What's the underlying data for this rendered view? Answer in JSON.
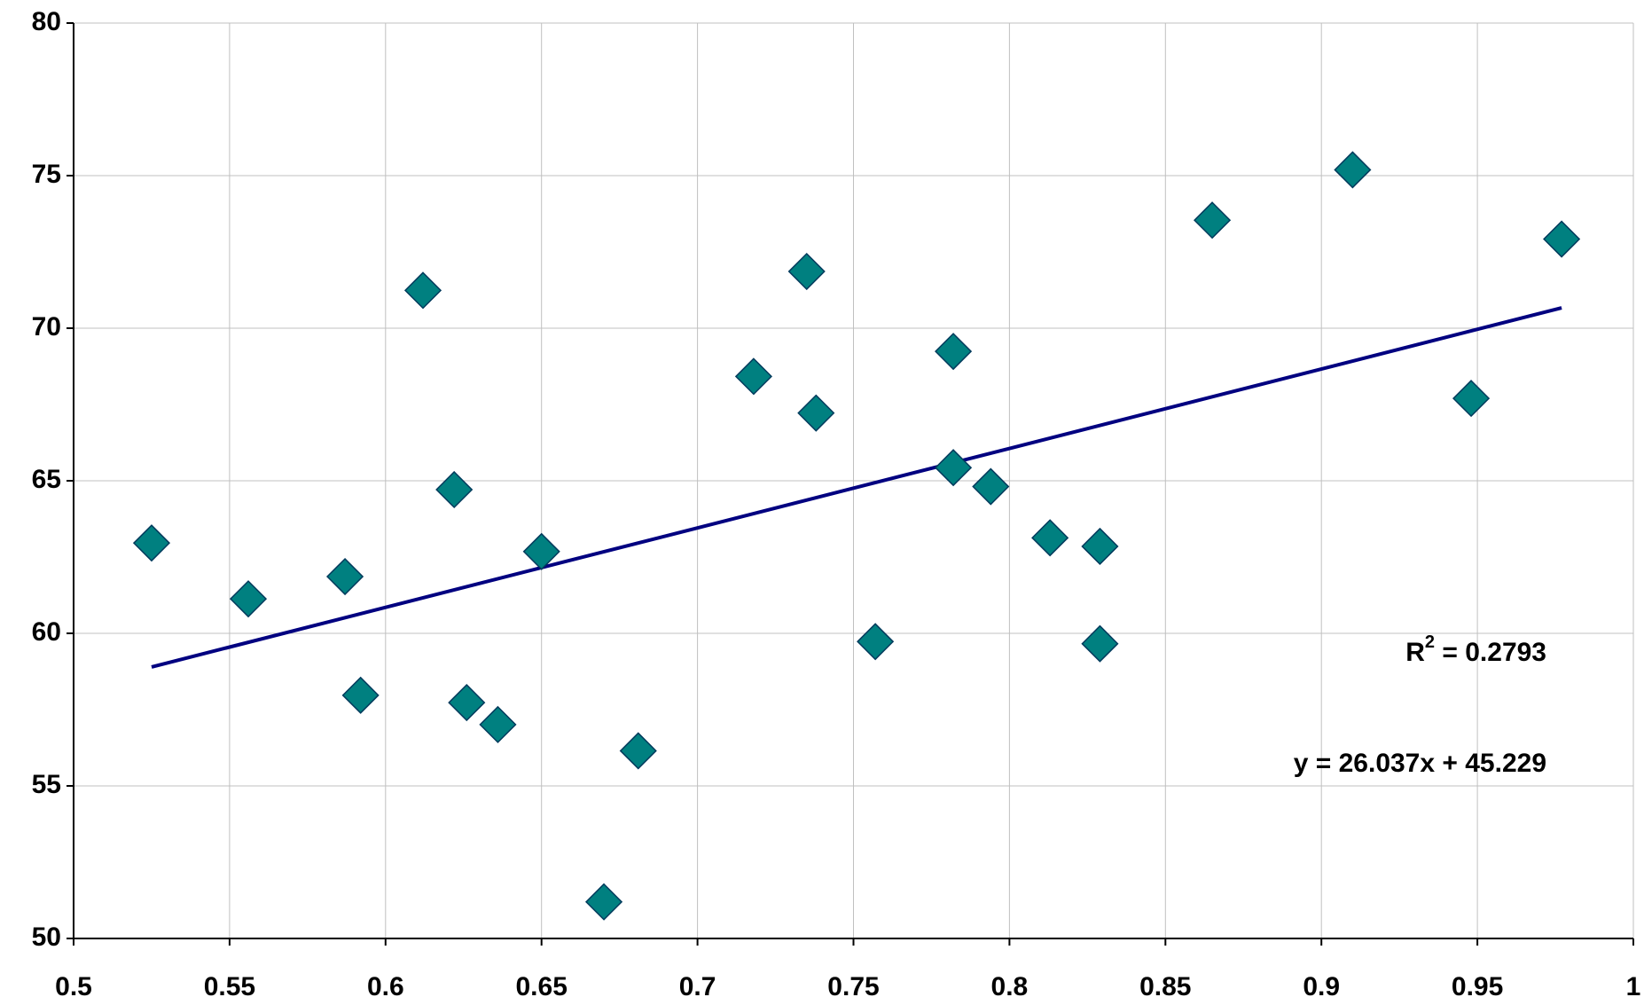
{
  "chart_data": {
    "type": "scatter",
    "x": [
      0.525,
      0.556,
      0.587,
      0.592,
      0.612,
      0.622,
      0.626,
      0.636,
      0.65,
      0.67,
      0.681,
      0.718,
      0.735,
      0.738,
      0.757,
      0.782,
      0.782,
      0.794,
      0.813,
      0.829,
      0.829,
      0.865,
      0.91,
      0.948,
      0.977
    ],
    "values": [
      62.96,
      61.13,
      61.86,
      57.97,
      71.24,
      64.71,
      57.73,
      57.01,
      62.68,
      51.2,
      56.15,
      68.42,
      71.86,
      67.22,
      59.73,
      69.24,
      65.43,
      64.81,
      63.13,
      62.85,
      59.66,
      73.54,
      75.19,
      67.7,
      72.92
    ],
    "color": "#008080",
    "edge_color": "#003a5c",
    "xlim": [
      0.5,
      1
    ],
    "xticks": [
      0.5,
      0.55,
      0.6,
      0.65,
      0.7,
      0.75,
      0.8,
      0.85,
      0.9,
      0.95,
      1
    ],
    "ylim": [
      50,
      80
    ],
    "yticks": [
      50,
      55,
      60,
      65,
      70,
      75,
      80
    ],
    "grid": true,
    "trendline": {
      "slope": 26.037,
      "intercept": 45.229,
      "color": "#000080",
      "equation": "y = 26.037x + 45.229",
      "r2_name": "R",
      "r2_power": "2",
      "r2_rest": " = 0.2793"
    }
  }
}
